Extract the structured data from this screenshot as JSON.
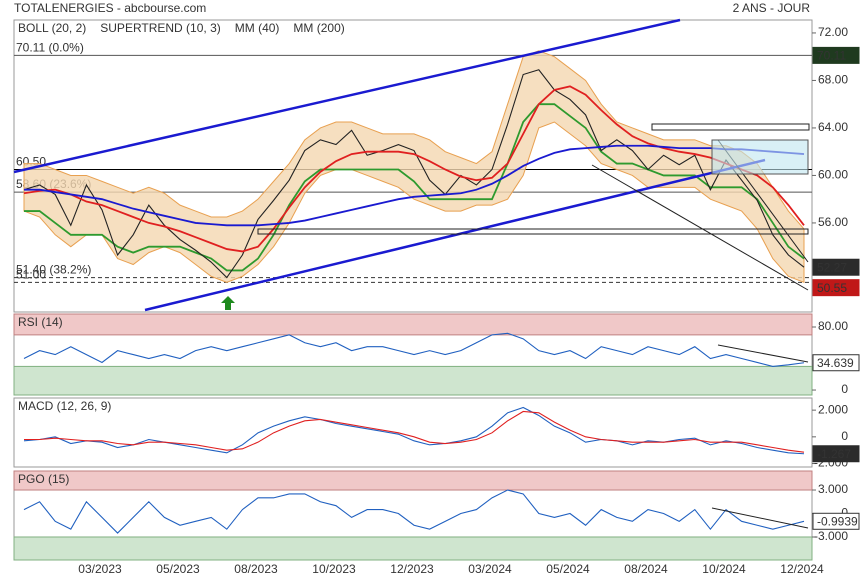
{
  "header": {
    "title": "TOTALENERGIES - abcbourse.com",
    "period": "2 ANS - JOUR"
  },
  "chart_data": [
    {
      "type": "line",
      "categories": [
        null,
        null,
        null,
        null,
        null,
        "03/2023",
        null,
        null,
        null,
        null,
        "05/2023",
        null,
        null,
        null,
        null,
        "08/2023",
        null,
        null,
        null,
        null,
        "10/2023",
        null,
        null,
        null,
        null,
        "12/2023",
        null,
        null,
        null,
        null,
        "03/2024",
        null,
        null,
        null,
        null,
        "05/2024",
        null,
        null,
        null,
        null,
        "08/2024",
        null,
        null,
        null,
        null,
        "10/2024",
        null,
        null,
        null,
        null,
        "12/2024"
      ],
      "ylim": [
        48.5,
        73.09
      ],
      "yticks": [
        {
          "value": 56,
          "label": "56.00"
        },
        {
          "value": 60,
          "label": "60.00"
        },
        {
          "value": 64,
          "label": "64.00"
        },
        {
          "value": 68,
          "label": "68.00"
        },
        {
          "value": 72,
          "label": "72.00"
        }
      ],
      "series": [
        {
          "type": "band",
          "name": "BOLL (20, 2)",
          "color": "#e8a050",
          "upper": [
            61,
            61,
            60.5,
            60,
            60,
            59.5,
            59,
            58.5,
            59,
            58.5,
            57.5,
            57,
            56.5,
            56.5,
            57,
            58,
            59.5,
            61,
            63,
            64,
            64.5,
            64.5,
            64,
            63.5,
            63.5,
            63.5,
            63,
            62,
            61.5,
            61,
            62,
            66,
            70,
            70.5,
            70,
            69,
            68,
            66,
            64.5,
            64,
            63.5,
            63,
            63,
            63,
            62.5,
            62.5,
            62,
            61,
            59,
            57,
            55.5
          ],
          "lower": [
            57,
            56.5,
            55,
            54,
            55,
            55,
            53,
            52.5,
            53.5,
            54,
            53.5,
            52.5,
            51.5,
            51,
            51.5,
            52.5,
            54,
            56,
            58.5,
            60,
            60.5,
            60.5,
            60,
            59.5,
            59,
            58,
            57.5,
            57,
            57,
            57.5,
            57.5,
            58,
            60,
            64,
            64.5,
            63.5,
            62.5,
            61,
            60.5,
            60,
            59,
            59,
            59,
            59,
            58,
            57.5,
            57,
            55.5,
            53,
            51.5,
            51
          ]
        },
        {
          "type": "line",
          "name": "SUPERTREND (10, 3)",
          "color": "#2e9a2e",
          "values": [
            57,
            57,
            56,
            55,
            55,
            55,
            54,
            53.5,
            54,
            54,
            54,
            53.5,
            53,
            52,
            52,
            53,
            55,
            57.5,
            59.5,
            60.5,
            60.5,
            60.5,
            60.5,
            60.5,
            60.5,
            59.5,
            58,
            58,
            58,
            58,
            58,
            61,
            64.5,
            66,
            66,
            65,
            64,
            62,
            61,
            61,
            60.5,
            60,
            60,
            60,
            59,
            59,
            59,
            58,
            56,
            54,
            53
          ]
        },
        {
          "type": "line",
          "color": "#222222",
          "values": [
            58.8,
            59.2,
            58.4,
            55.8,
            59.2,
            57.1,
            53.3,
            55.0,
            57.5,
            55.8,
            54.6,
            53.7,
            52.7,
            51.4,
            53.3,
            56.3,
            57.9,
            59.6,
            62.1,
            63.0,
            62.6,
            63.8,
            61.7,
            62.1,
            62.6,
            62.1,
            59.6,
            58.4,
            60.0,
            59.2,
            60.5,
            64.3,
            68.5,
            68.9,
            67.2,
            66.4,
            65.1,
            62.1,
            63.0,
            62.1,
            60.5,
            61.7,
            60.9,
            61.7,
            58.8,
            61.3,
            59.6,
            57.9,
            55.0,
            53.3,
            52.27
          ]
        },
        {
          "type": "line",
          "name": "MM (40)",
          "color": "#e02020",
          "values": [
            58.5,
            58.7,
            58.8,
            58.4,
            57.8,
            57.5,
            57.0,
            56.5,
            56.0,
            55.7,
            55.3,
            54.8,
            54.3,
            53.8,
            53.6,
            54.0,
            55.5,
            57.3,
            59.0,
            60.3,
            61.2,
            61.8,
            62.0,
            62.0,
            62.0,
            61.8,
            61.2,
            60.5,
            59.9,
            59.6,
            59.8,
            61.0,
            63.5,
            66.0,
            67.2,
            67.5,
            66.8,
            65.5,
            64.3,
            63.3,
            62.7,
            62.3,
            62.0,
            61.8,
            61.5,
            61.0,
            60.5,
            60.0,
            59.0,
            57.5,
            55.8
          ]
        },
        {
          "type": "line",
          "name": "MM (200)",
          "color": "#1a1ad0",
          "values": [
            58.8,
            58.8,
            58.6,
            58.4,
            58.2,
            58.0,
            57.6,
            57.2,
            56.9,
            56.6,
            56.3,
            56.0,
            55.9,
            55.8,
            55.8,
            55.8,
            55.9,
            56.0,
            56.2,
            56.5,
            56.8,
            57.1,
            57.4,
            57.7,
            58.0,
            58.2,
            58.3,
            58.4,
            58.5,
            58.8,
            59.3,
            60.0,
            60.8,
            61.4,
            61.9,
            62.2,
            62.3,
            62.4,
            62.5,
            62.5,
            62.5,
            62.4,
            62.3,
            62.3,
            62.3,
            62.2,
            62.2,
            62.1,
            62.0,
            61.9,
            61.8
          ]
        }
      ],
      "hlines": [
        {
          "value": 70.11,
          "label": "70.11 (0.0%)",
          "badge": "70.11",
          "color": "#555555"
        },
        {
          "value": 60.5,
          "label": "60.50",
          "color": "#000000"
        },
        {
          "value": 58.6,
          "label": "58.60 (23.6%)",
          "color": "#555555"
        },
        {
          "value": 51.4,
          "label": "51.40 (38.2%)",
          "color": "#333333",
          "dashed": true
        },
        {
          "value": 51.0,
          "label": "51.00",
          "color": "#333333",
          "dashed": true
        }
      ],
      "badges": [
        {
          "value": 52.27,
          "bg": "#2b2b2b"
        },
        {
          "value": 50.55,
          "bg": "#c01818"
        }
      ]
    },
    {
      "type": "line",
      "title": "RSI (14)",
      "ylim": [
        -6.3,
        96.5
      ],
      "yticks": [
        0,
        {
          "value": 80,
          "label": "80.00"
        }
      ],
      "zones": {
        "high": 70,
        "low": 30
      },
      "series": [
        {
          "type": "line",
          "color": "#2060c0",
          "values": [
            40,
            50,
            45,
            55,
            45,
            35,
            50,
            45,
            40,
            45,
            40,
            50,
            55,
            50,
            55,
            60,
            65,
            70,
            60,
            55,
            60,
            50,
            55,
            55,
            50,
            45,
            50,
            45,
            50,
            60,
            70,
            72,
            65,
            50,
            45,
            50,
            40,
            55,
            50,
            45,
            55,
            50,
            45,
            55,
            40,
            45,
            40,
            35,
            30,
            32,
            34.639
          ]
        }
      ],
      "badges": [
        {
          "value": 34.639,
          "bg": "#ffffff"
        }
      ]
    },
    {
      "type": "line",
      "title": "MACD (12, 26, 9)",
      "ylim": [
        -2.26,
        2.91
      ],
      "yticks": [
        {
          "value": -2,
          "label": "-2.000"
        },
        0,
        {
          "value": 2,
          "label": "2.000"
        }
      ],
      "series": [
        {
          "type": "line",
          "color": "#2060c0",
          "values": [
            -0.3,
            -0.2,
            0.0,
            -0.5,
            -0.3,
            -0.4,
            -0.8,
            -0.6,
            -0.2,
            -0.4,
            -0.6,
            -0.8,
            -1.0,
            -1.2,
            -0.6,
            0.3,
            0.8,
            1.2,
            1.5,
            1.3,
            1.0,
            0.8,
            0.6,
            0.4,
            0.2,
            -0.3,
            -0.6,
            -0.5,
            -0.3,
            0.0,
            0.8,
            1.8,
            2.2,
            1.6,
            0.8,
            0.3,
            -0.4,
            -0.2,
            -0.3,
            -0.6,
            -0.3,
            -0.4,
            -0.2,
            -0.1,
            -0.6,
            -0.3,
            -0.5,
            -0.8,
            -1.0,
            -1.2,
            -1.267
          ]
        },
        {
          "type": "line",
          "color": "#e02020",
          "values": [
            -0.2,
            -0.2,
            -0.1,
            -0.2,
            -0.3,
            -0.3,
            -0.5,
            -0.6,
            -0.4,
            -0.4,
            -0.5,
            -0.6,
            -0.8,
            -1.0,
            -0.9,
            -0.4,
            0.3,
            0.8,
            1.2,
            1.3,
            1.1,
            0.9,
            0.7,
            0.5,
            0.3,
            0.0,
            -0.4,
            -0.5,
            -0.4,
            -0.2,
            0.3,
            1.2,
            1.9,
            1.8,
            1.1,
            0.5,
            0.0,
            -0.2,
            -0.3,
            -0.4,
            -0.4,
            -0.4,
            -0.3,
            -0.2,
            -0.4,
            -0.4,
            -0.4,
            -0.6,
            -0.8,
            -1.0,
            -1.15
          ]
        }
      ],
      "badges": [
        {
          "value": -1.267,
          "bg": "#2b2b2b"
        }
      ]
    },
    {
      "type": "line",
      "title": "PGO (15)",
      "ylim": [
        -5.94,
        5.43
      ],
      "yticks": [
        {
          "value": -3,
          "label": "-3.000"
        },
        0,
        {
          "value": 3,
          "label": "3.000"
        }
      ],
      "zones": {
        "high": 3,
        "low": -3
      },
      "series": [
        {
          "type": "line",
          "color": "#2060c0",
          "values": [
            0.5,
            1.5,
            -1,
            -2,
            1.5,
            -0.5,
            -2.5,
            -0.5,
            1.5,
            -0.5,
            -1.5,
            -1,
            -0.5,
            -2,
            0.5,
            2,
            2,
            2.5,
            2.5,
            1.5,
            1,
            -0.5,
            0.5,
            0.5,
            0,
            -1.5,
            -2,
            -1,
            0,
            0.5,
            2,
            3,
            2.5,
            0,
            -0.5,
            0,
            -1.5,
            0.5,
            -0.5,
            -1,
            0.5,
            0,
            -1,
            0.5,
            -2,
            0.5,
            -1,
            -1.5,
            -2,
            -1.5,
            -0.9939
          ]
        }
      ],
      "badges": [
        {
          "value": -0.9939,
          "bg": "#ffffff"
        }
      ]
    }
  ]
}
